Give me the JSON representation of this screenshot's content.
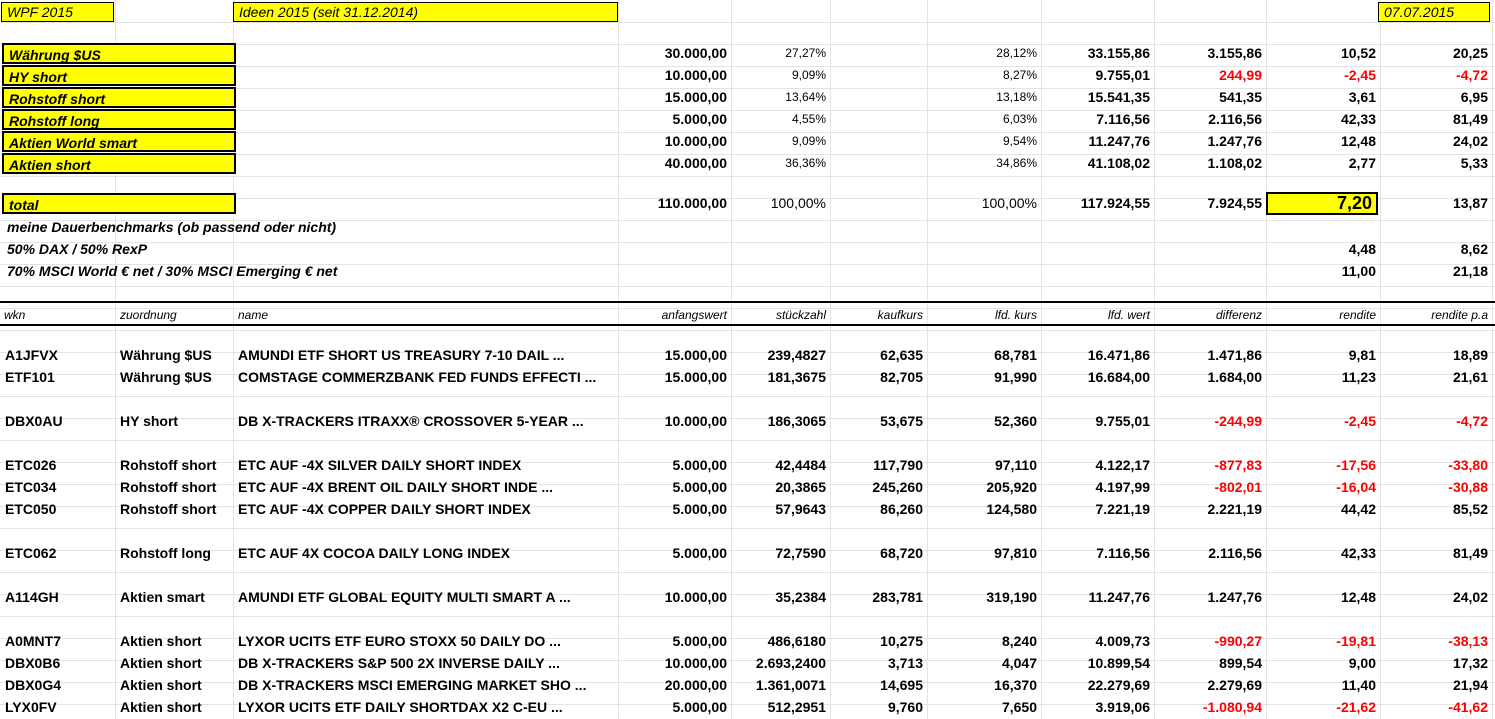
{
  "header": {
    "title": "WPF 2015",
    "subtitle": "Ideen 2015 (seit 31.12.2014)",
    "date": "07.07.2015"
  },
  "summary": [
    {
      "label": "Währung $US",
      "anfangswert": "30.000,00",
      "anteil": "27,27%",
      "anteil_aktuell": "28,12%",
      "wert": "33.155,86",
      "differenz": "3.155,86",
      "rendite": "10,52",
      "rendite_pa": "20,25",
      "neg": false
    },
    {
      "label": "HY short",
      "anfangswert": "10.000,00",
      "anteil": "9,09%",
      "anteil_aktuell": "8,27%",
      "wert": "9.755,01",
      "differenz": "244,99",
      "rendite": "-2,45",
      "rendite_pa": "-4,72",
      "neg": true
    },
    {
      "label": "Rohstoff short",
      "anfangswert": "15.000,00",
      "anteil": "13,64%",
      "anteil_aktuell": "13,18%",
      "wert": "15.541,35",
      "differenz": "541,35",
      "rendite": "3,61",
      "rendite_pa": "6,95",
      "neg": false
    },
    {
      "label": "Rohstoff long",
      "anfangswert": "5.000,00",
      "anteil": "4,55%",
      "anteil_aktuell": "6,03%",
      "wert": "7.116,56",
      "differenz": "2.116,56",
      "rendite": "42,33",
      "rendite_pa": "81,49",
      "neg": false
    },
    {
      "label": "Aktien World smart",
      "anfangswert": "10.000,00",
      "anteil": "9,09%",
      "anteil_aktuell": "9,54%",
      "wert": "11.247,76",
      "differenz": "1.247,76",
      "rendite": "12,48",
      "rendite_pa": "24,02",
      "neg": false
    },
    {
      "label": "Aktien short",
      "anfangswert": "40.000,00",
      "anteil": "36,36%",
      "anteil_aktuell": "34,86%",
      "wert": "41.108,02",
      "differenz": "1.108,02",
      "rendite": "2,77",
      "rendite_pa": "5,33",
      "neg": false
    }
  ],
  "total": {
    "label": "total",
    "anfangswert": "110.000,00",
    "anteil": "100,00%",
    "anteil_aktuell": "100,00%",
    "wert": "117.924,55",
    "differenz": "7.924,55",
    "rendite": "7,20",
    "rendite_pa": "13,87"
  },
  "benchmarks": {
    "title": "meine Dauerbenchmarks (ob passend oder nicht)",
    "rows": [
      {
        "label": "50% DAX / 50% RexP",
        "rendite": "4,48",
        "rendite_pa": "8,62"
      },
      {
        "label": "70% MSCI World € net / 30% MSCI Emerging € net",
        "rendite": "11,00",
        "rendite_pa": "21,18"
      }
    ]
  },
  "columns": {
    "wkn": "wkn",
    "zuordnung": "zuordnung",
    "name": "name",
    "anfangswert": "anfangswert",
    "stueckzahl": "stückzahl",
    "kaufkurs": "kaufkurs",
    "lfd_kurs": "lfd. kurs",
    "lfd_wert": "lfd. wert",
    "differenz": "differenz",
    "rendite": "rendite",
    "rendite_pa": "rendite p.a"
  },
  "positions": [
    {
      "wkn": "A1JFVX",
      "zuordnung": "Währung $US",
      "name": "AMUNDI ETF SHORT US TREASURY 7-10 DAIL ...",
      "anfangswert": "15.000,00",
      "stueckzahl": "239,4827",
      "kaufkurs": "62,635",
      "lfd_kurs": "68,781",
      "lfd_wert": "16.471,86",
      "differenz": "1.471,86",
      "rendite": "9,81",
      "rendite_pa": "18,89",
      "neg": false
    },
    {
      "wkn": "ETF101",
      "zuordnung": "Währung $US",
      "name": "COMSTAGE COMMERZBANK FED FUNDS EFFECTI ...",
      "anfangswert": "15.000,00",
      "stueckzahl": "181,3675",
      "kaufkurs": "82,705",
      "lfd_kurs": "91,990",
      "lfd_wert": "16.684,00",
      "differenz": "1.684,00",
      "rendite": "11,23",
      "rendite_pa": "21,61",
      "neg": false
    },
    {
      "wkn": "DBX0AU",
      "zuordnung": "HY short",
      "name": "DB X-TRACKERS ITRAXX® CROSSOVER 5-YEAR ...",
      "anfangswert": "10.000,00",
      "stueckzahl": "186,3065",
      "kaufkurs": "53,675",
      "lfd_kurs": "52,360",
      "lfd_wert": "9.755,01",
      "differenz": "-244,99",
      "rendite": "-2,45",
      "rendite_pa": "-4,72",
      "neg": true
    },
    {
      "wkn": "ETC026",
      "zuordnung": "Rohstoff short",
      "name": "ETC AUF -4X SILVER DAILY SHORT INDEX",
      "anfangswert": "5.000,00",
      "stueckzahl": "42,4484",
      "kaufkurs": "117,790",
      "lfd_kurs": "97,110",
      "lfd_wert": "4.122,17",
      "differenz": "-877,83",
      "rendite": "-17,56",
      "rendite_pa": "-33,80",
      "neg": true
    },
    {
      "wkn": "ETC034",
      "zuordnung": "Rohstoff short",
      "name": "ETC AUF -4X BRENT OIL DAILY SHORT INDE ...",
      "anfangswert": "5.000,00",
      "stueckzahl": "20,3865",
      "kaufkurs": "245,260",
      "lfd_kurs": "205,920",
      "lfd_wert": "4.197,99",
      "differenz": "-802,01",
      "rendite": "-16,04",
      "rendite_pa": "-30,88",
      "neg": true
    },
    {
      "wkn": "ETC050",
      "zuordnung": "Rohstoff short",
      "name": "ETC AUF -4X COPPER DAILY SHORT INDEX",
      "anfangswert": "5.000,00",
      "stueckzahl": "57,9643",
      "kaufkurs": "86,260",
      "lfd_kurs": "124,580",
      "lfd_wert": "7.221,19",
      "differenz": "2.221,19",
      "rendite": "44,42",
      "rendite_pa": "85,52",
      "neg": false
    },
    {
      "wkn": "ETC062",
      "zuordnung": "Rohstoff long",
      "name": "ETC AUF 4X COCOA DAILY LONG INDEX",
      "anfangswert": "5.000,00",
      "stueckzahl": "72,7590",
      "kaufkurs": "68,720",
      "lfd_kurs": "97,810",
      "lfd_wert": "7.116,56",
      "differenz": "2.116,56",
      "rendite": "42,33",
      "rendite_pa": "81,49",
      "neg": false
    },
    {
      "wkn": "A114GH",
      "zuordnung": "Aktien smart",
      "name": "AMUNDI ETF GLOBAL EQUITY MULTI SMART A ...",
      "anfangswert": "10.000,00",
      "stueckzahl": "35,2384",
      "kaufkurs": "283,781",
      "lfd_kurs": "319,190",
      "lfd_wert": "11.247,76",
      "differenz": "1.247,76",
      "rendite": "12,48",
      "rendite_pa": "24,02",
      "neg": false
    },
    {
      "wkn": "A0MNT7",
      "zuordnung": "Aktien short",
      "name": "LYXOR UCITS ETF EURO STOXX 50 DAILY DO ...",
      "anfangswert": "5.000,00",
      "stueckzahl": "486,6180",
      "kaufkurs": "10,275",
      "lfd_kurs": "8,240",
      "lfd_wert": "4.009,73",
      "differenz": "-990,27",
      "rendite": "-19,81",
      "rendite_pa": "-38,13",
      "neg": true
    },
    {
      "wkn": "DBX0B6",
      "zuordnung": "Aktien short",
      "name": "DB X-TRACKERS S&P 500 2X INVERSE DAILY ...",
      "anfangswert": "10.000,00",
      "stueckzahl": "2.693,2400",
      "kaufkurs": "3,713",
      "lfd_kurs": "4,047",
      "lfd_wert": "10.899,54",
      "differenz": "899,54",
      "rendite": "9,00",
      "rendite_pa": "17,32",
      "neg": false
    },
    {
      "wkn": "DBX0G4",
      "zuordnung": "Aktien short",
      "name": "DB X-TRACKERS MSCI EMERGING MARKET SHO ...",
      "anfangswert": "20.000,00",
      "stueckzahl": "1.361,0071",
      "kaufkurs": "14,695",
      "lfd_kurs": "16,370",
      "lfd_wert": "22.279,69",
      "differenz": "2.279,69",
      "rendite": "11,40",
      "rendite_pa": "21,94",
      "neg": false
    },
    {
      "wkn": "LYX0FV",
      "zuordnung": "Aktien short",
      "name": "LYXOR UCITS ETF DAILY SHORTDAX X2 C-EU ...",
      "anfangswert": "5.000,00",
      "stueckzahl": "512,2951",
      "kaufkurs": "9,760",
      "lfd_kurs": "7,650",
      "lfd_wert": "3.919,06",
      "differenz": "-1.080,94",
      "rendite": "-21,62",
      "rendite_pa": "-41,62",
      "neg": true
    }
  ]
}
